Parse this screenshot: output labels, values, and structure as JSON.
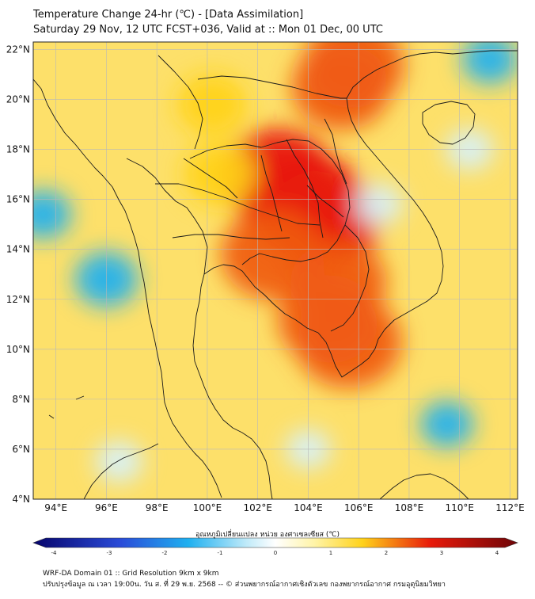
{
  "header": {
    "title_line1": "Temperature Change 24-hr (℃) - [Data Assimilation]",
    "title_line2": "Saturday 29 Nov, 12 UTC FCST+036, Valid at :: Mon 01 Dec, 00 UTC"
  },
  "map": {
    "lat_labels": [
      "22°N",
      "20°N",
      "18°N",
      "16°N",
      "14°N",
      "12°N",
      "10°N",
      "8°N",
      "6°N",
      "4°N"
    ],
    "lon_labels": [
      "94°E",
      "96°E",
      "98°E",
      "100°E",
      "102°E",
      "104°E",
      "106°E",
      "108°E",
      "110°E",
      "112°E"
    ],
    "lat_values": [
      22,
      20,
      18,
      16,
      14,
      12,
      10,
      8,
      6,
      4
    ],
    "lon_values": [
      94,
      96,
      98,
      100,
      102,
      104,
      106,
      108,
      110,
      112
    ],
    "lat_range": [
      4,
      22.3
    ],
    "lon_range": [
      93.1,
      112.3
    ],
    "field_blobs": [
      {
        "lon": 103.8,
        "lat": 15.9,
        "value": 3.1
      },
      {
        "lon": 102.8,
        "lat": 16.9,
        "value": 2.8
      },
      {
        "lon": 104.6,
        "lat": 15.2,
        "value": 2.9
      },
      {
        "lon": 102.6,
        "lat": 13.8,
        "value": 2.5
      },
      {
        "lon": 104.8,
        "lat": 11.2,
        "value": 2.4
      },
      {
        "lon": 105.6,
        "lat": 10.3,
        "value": 2.6
      },
      {
        "lon": 105.2,
        "lat": 12.7,
        "value": 2.2
      },
      {
        "lon": 105.3,
        "lat": 20.5,
        "value": 2.3
      },
      {
        "lon": 105.8,
        "lat": 21.4,
        "value": 2.4
      },
      {
        "lon": 100.2,
        "lat": 19.8,
        "value": 1.2
      },
      {
        "lon": 100.5,
        "lat": 17.0,
        "value": 1.3
      },
      {
        "lon": 96.0,
        "lat": 12.8,
        "value": -0.9
      },
      {
        "lon": 93.5,
        "lat": 15.4,
        "value": -0.6
      },
      {
        "lon": 109.5,
        "lat": 7.0,
        "value": -0.5
      },
      {
        "lon": 111.2,
        "lat": 21.6,
        "value": -0.6
      },
      {
        "lon": 110.4,
        "lat": 18.0,
        "value": -0.3
      },
      {
        "lon": 104.0,
        "lat": 6.0,
        "value": -0.2
      },
      {
        "lon": 96.5,
        "lat": 5.5,
        "value": -0.3
      },
      {
        "lon": 106.8,
        "lat": 15.8,
        "value": -0.3
      }
    ]
  },
  "colorbar": {
    "title": "อุณหภูมิเปลี่ยนแปลง หน่วย องศาเซลเซียส (℃)",
    "min": -4,
    "max": 4,
    "ticks": [
      -4,
      -3,
      -2,
      -1,
      0,
      1,
      2,
      3,
      4
    ],
    "colors": {
      "cold_end": "#06046b",
      "cool": "#1fb0f0",
      "neutral": "#ffffff",
      "warm": "#ffd21a",
      "hot": "#e81a0a",
      "hot_end": "#6e0508"
    }
  },
  "footer": {
    "line1": "WRF-DA Domain 01 :: Grid Resolution 9km x 9km",
    "line2": "ปรับปรุงข้อมูล ณ เวลา 19:00น. วัน ส. ที่ 29 พ.ย. 2568 -- © ส่วนพยากรณ์อากาศเชิงตัวเลข กองพยากรณ์อากาศ กรมอุตุนิยมวิทยา"
  }
}
